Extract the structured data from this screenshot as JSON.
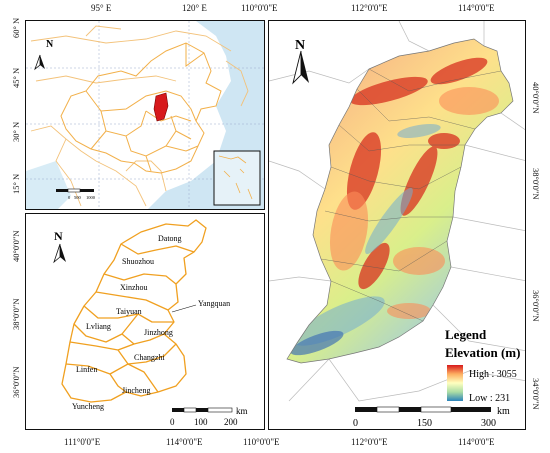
{
  "top_left_map": {
    "lon_ticks": [
      "95° E",
      "120° E"
    ],
    "lat_ticks": [
      "60° N",
      "45° N",
      "30° N",
      "15° N"
    ],
    "north_label": "N",
    "scale_numbers": [
      "0",
      "500",
      "1000"
    ]
  },
  "bottom_left_map": {
    "lon_ticks": [
      "111°0'0\"E",
      "114°0'0\"E"
    ],
    "lat_ticks": [
      "40°0'0\"N",
      "38°0'0\"N",
      "36°0'0\"N"
    ],
    "north_label": "N",
    "cities": [
      "Datong",
      "Shuozhou",
      "Xinzhou",
      "Yangquan",
      "Taiyuan",
      "Lvliang",
      "Jinzhong",
      "Changzhi",
      "Linfen",
      "Jincheng",
      "Yuncheng"
    ],
    "scale_numbers": [
      "0",
      "100",
      "200"
    ],
    "scale_unit": "km"
  },
  "right_map": {
    "lon_ticks_top": [
      "110°0'0\"E",
      "112°0'0\"E",
      "114°0'0\"E"
    ],
    "lon_ticks_bottom": [
      "110°0'0\"E",
      "112°0'0\"E",
      "114°0'0\"E"
    ],
    "lat_ticks": [
      "40°0'0\"N",
      "38°0'0\"N",
      "36°0'0\"N",
      "34°0'0\"N"
    ],
    "north_label": "N",
    "legend_title": "Legend",
    "legend_subtitle": "Elevation (m)",
    "legend_high": "High : 3055",
    "legend_low": "Low : 231",
    "elevation_high": 3055,
    "elevation_low": 231,
    "scale_numbers": [
      "0",
      "150",
      "300"
    ],
    "scale_unit": "km"
  },
  "colors": {
    "province_border": "#f2b04a",
    "water": "#cfe6f3",
    "shanxi_highlight": "#d7191c",
    "city_border": "#f0a020",
    "ramp_high": "#d7191c",
    "ramp_mid": "#ffffbf",
    "ramp_low": "#2b83ba"
  }
}
